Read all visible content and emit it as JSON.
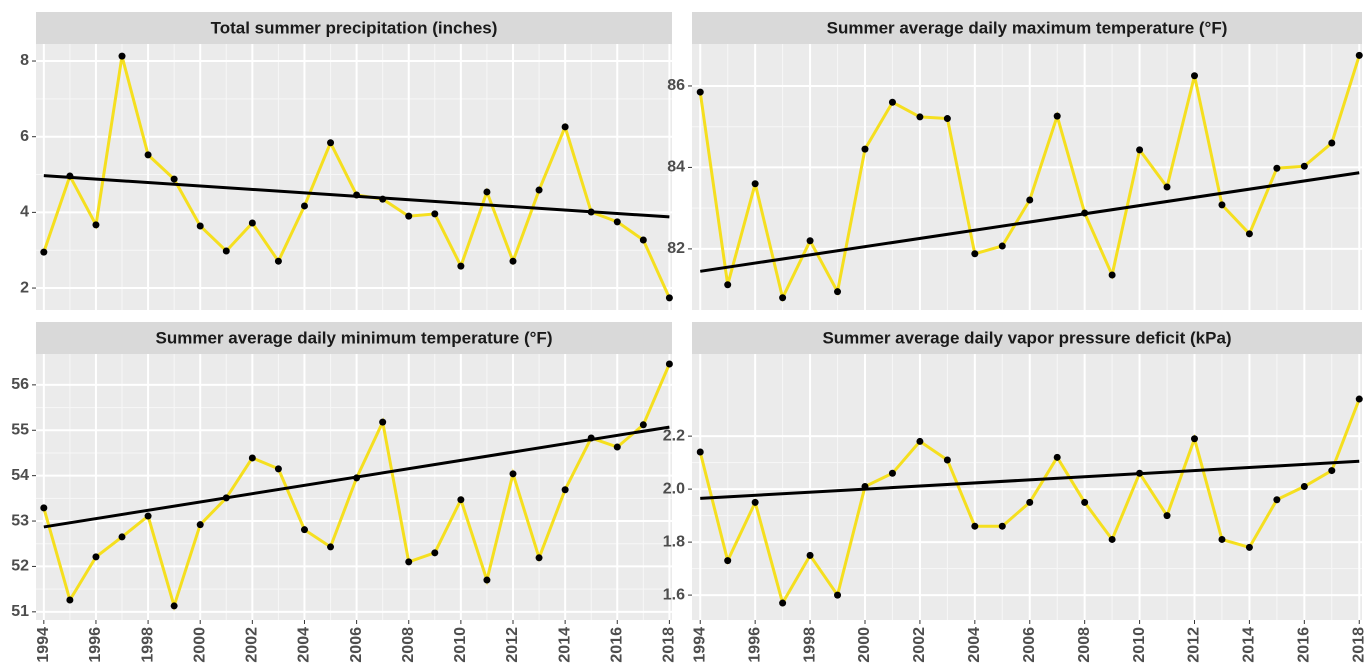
{
  "chart_data": [
    {
      "type": "line",
      "title": "Total summer precipitation (inches)",
      "x": [
        1994,
        1995,
        1996,
        1997,
        1998,
        1999,
        2000,
        2001,
        2002,
        2003,
        2004,
        2005,
        2006,
        2007,
        2008,
        2009,
        2010,
        2011,
        2012,
        2013,
        2014,
        2015,
        2016,
        2017,
        2018
      ],
      "values": [
        2.95,
        4.96,
        3.67,
        8.13,
        5.52,
        4.88,
        3.64,
        2.98,
        3.72,
        2.71,
        4.17,
        5.84,
        4.46,
        4.35,
        3.9,
        3.96,
        2.58,
        4.54,
        2.71,
        4.59,
        6.26,
        4.01,
        3.75,
        3.27,
        1.74
      ],
      "color": "#f5df1f",
      "point_color": "#000000",
      "trend": {
        "x": [
          1994,
          2018
        ],
        "values": [
          4.97,
          3.88
        ],
        "color": "#000000"
      },
      "xlim": [
        1993.7,
        2018.1
      ],
      "xticks": [
        1994,
        1996,
        1998,
        2000,
        2002,
        2004,
        2006,
        2008,
        2010,
        2012,
        2014,
        2016,
        2018
      ],
      "ylim": [
        1.42,
        8.45
      ],
      "yticks": [
        2,
        4,
        6,
        8
      ],
      "grid": true
    },
    {
      "type": "line",
      "title": "Summer average daily maximum temperature (°F)",
      "x": [
        1994,
        1995,
        1996,
        1997,
        1998,
        1999,
        2000,
        2001,
        2002,
        2003,
        2004,
        2005,
        2006,
        2007,
        2008,
        2009,
        2010,
        2011,
        2012,
        2013,
        2014,
        2015,
        2016,
        2017,
        2018
      ],
      "values": [
        85.85,
        81.12,
        83.6,
        80.8,
        82.2,
        80.95,
        84.45,
        85.6,
        85.24,
        85.2,
        81.88,
        82.07,
        83.2,
        85.26,
        82.88,
        81.36,
        84.43,
        83.52,
        86.25,
        83.08,
        82.37,
        83.98,
        84.03,
        84.6,
        86.75
      ],
      "color": "#f5df1f",
      "point_color": "#000000",
      "trend": {
        "x": [
          1994,
          2018
        ],
        "values": [
          81.45,
          83.87
        ],
        "color": "#000000"
      },
      "xlim": [
        1993.7,
        2018.1
      ],
      "xticks": [
        1994,
        1996,
        1998,
        2000,
        2002,
        2004,
        2006,
        2008,
        2010,
        2012,
        2014,
        2016,
        2018
      ],
      "ylim": [
        80.5,
        87.03
      ],
      "yticks": [
        82,
        84,
        86
      ],
      "grid": true
    },
    {
      "type": "line",
      "title": "Summer average daily minimum temperature (°F)",
      "x": [
        1994,
        1995,
        1996,
        1997,
        1998,
        1999,
        2000,
        2001,
        2002,
        2003,
        2004,
        2005,
        2006,
        2007,
        2008,
        2009,
        2010,
        2011,
        2012,
        2013,
        2014,
        2015,
        2016,
        2017,
        2018
      ],
      "values": [
        53.29,
        51.26,
        52.21,
        52.65,
        53.11,
        51.13,
        52.92,
        53.51,
        54.39,
        54.15,
        52.81,
        52.43,
        53.95,
        55.18,
        52.1,
        52.3,
        53.47,
        51.7,
        54.04,
        52.19,
        53.69,
        54.83,
        54.63,
        55.12,
        56.46
      ],
      "color": "#f5df1f",
      "point_color": "#000000",
      "trend": {
        "x": [
          1994,
          2018
        ],
        "values": [
          52.87,
          55.07
        ],
        "color": "#000000"
      },
      "xlim": [
        1993.7,
        2018.1
      ],
      "xticks": [
        1994,
        1996,
        1998,
        2000,
        2002,
        2004,
        2006,
        2008,
        2010,
        2012,
        2014,
        2016,
        2018
      ],
      "ylim": [
        50.82,
        56.68
      ],
      "yticks": [
        51,
        52,
        53,
        54,
        55,
        56
      ],
      "grid": true
    },
    {
      "type": "line",
      "title": "Summer average daily vapor pressure deficit (kPa)",
      "x": [
        1994,
        1995,
        1996,
        1997,
        1998,
        1999,
        2000,
        2001,
        2002,
        2003,
        2004,
        2005,
        2006,
        2007,
        2008,
        2009,
        2010,
        2011,
        2012,
        2013,
        2014,
        2015,
        2016,
        2017,
        2018
      ],
      "values": [
        2.14,
        1.73,
        1.95,
        1.57,
        1.75,
        1.6,
        2.01,
        2.06,
        2.18,
        2.11,
        1.86,
        1.86,
        1.95,
        2.12,
        1.95,
        1.81,
        2.06,
        1.9,
        2.19,
        1.81,
        1.78,
        1.96,
        2.01,
        2.07,
        2.34
      ],
      "color": "#f5df1f",
      "point_color": "#000000",
      "trend": {
        "x": [
          1994,
          2018
        ],
        "values": [
          1.965,
          2.105
        ],
        "color": "#000000"
      },
      "xlim": [
        1993.7,
        2018.1
      ],
      "xticks": [
        1994,
        1996,
        1998,
        2000,
        2002,
        2004,
        2006,
        2008,
        2010,
        2012,
        2014,
        2016,
        2018
      ],
      "ylim": [
        1.506,
        2.51
      ],
      "yticks": [
        1.6,
        1.8,
        {
          "value": 2,
          "label": "2.0"
        },
        2.2
      ],
      "grid": true
    }
  ]
}
